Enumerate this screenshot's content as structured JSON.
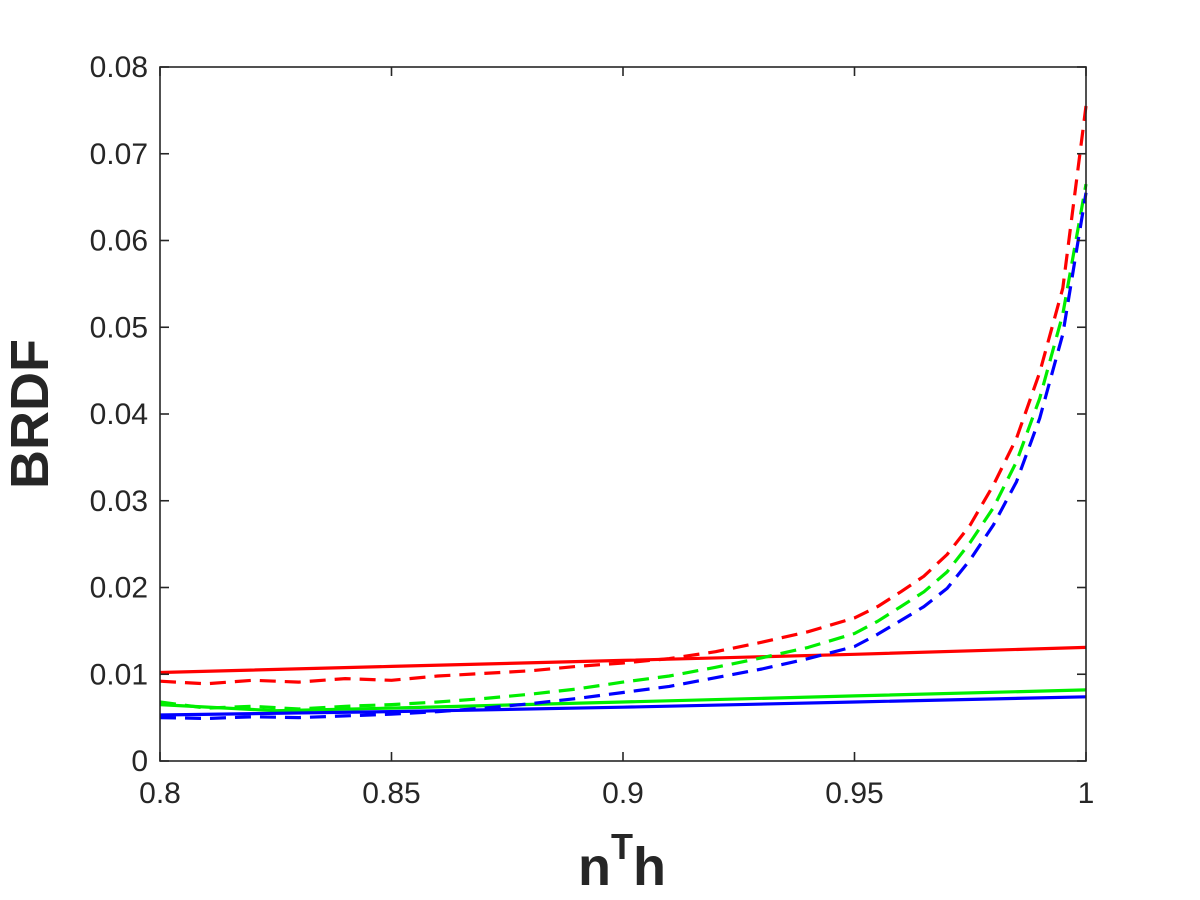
{
  "chart_data": {
    "type": "line",
    "xlabel_base": "n",
    "xlabel_sup": "T",
    "xlabel_tail": "h",
    "ylabel": "BRDF",
    "xlim": [
      0.8,
      1.0
    ],
    "ylim": [
      0,
      0.08
    ],
    "x_ticks": [
      0.8,
      0.85,
      0.9,
      0.95,
      1.0
    ],
    "x_tick_labels": [
      "0.8",
      "0.85",
      "0.9",
      "0.95",
      "1"
    ],
    "y_ticks": [
      0,
      0.01,
      0.02,
      0.03,
      0.04,
      0.05,
      0.06,
      0.07,
      0.08
    ],
    "y_tick_labels": [
      "0",
      "0.01",
      "0.02",
      "0.03",
      "0.04",
      "0.05",
      "0.06",
      "0.07",
      "0.08"
    ],
    "grid": false,
    "legend": "none",
    "series": [
      {
        "color": "#ff0000",
        "style": "solid",
        "x": [
          0.8,
          0.85,
          0.9,
          0.95,
          1.0
        ],
        "y": [
          0.0102,
          0.0109,
          0.0116,
          0.0123,
          0.0131
        ]
      },
      {
        "color": "#00ee00",
        "style": "solid",
        "x": [
          0.8,
          0.825,
          0.85,
          0.9,
          0.95,
          1.0
        ],
        "y": [
          0.0065,
          0.0058,
          0.0061,
          0.0068,
          0.0075,
          0.0082
        ]
      },
      {
        "color": "#0000ff",
        "style": "solid",
        "x": [
          0.8,
          0.825,
          0.85,
          0.9,
          0.95,
          1.0
        ],
        "y": [
          0.0053,
          0.0055,
          0.0057,
          0.0062,
          0.0068,
          0.0074
        ]
      },
      {
        "color": "#ff0000",
        "style": "dashed",
        "x": [
          0.8,
          0.81,
          0.82,
          0.83,
          0.84,
          0.85,
          0.86,
          0.87,
          0.88,
          0.89,
          0.9,
          0.91,
          0.92,
          0.93,
          0.94,
          0.95,
          0.955,
          0.96,
          0.965,
          0.97,
          0.975,
          0.98,
          0.985,
          0.99,
          0.995,
          1.0
        ],
        "y": [
          0.0092,
          0.0089,
          0.0093,
          0.0091,
          0.0095,
          0.0093,
          0.0098,
          0.0101,
          0.0104,
          0.0109,
          0.0113,
          0.0118,
          0.0126,
          0.0137,
          0.0149,
          0.0165,
          0.0178,
          0.0195,
          0.0213,
          0.0238,
          0.0272,
          0.0318,
          0.0372,
          0.0448,
          0.0545,
          0.0755
        ]
      },
      {
        "color": "#00ee00",
        "style": "dashed",
        "x": [
          0.8,
          0.81,
          0.82,
          0.83,
          0.84,
          0.85,
          0.86,
          0.87,
          0.88,
          0.89,
          0.9,
          0.91,
          0.92,
          0.93,
          0.94,
          0.95,
          0.955,
          0.96,
          0.965,
          0.97,
          0.975,
          0.98,
          0.985,
          0.99,
          0.995,
          1.0
        ],
        "y": [
          0.0068,
          0.0061,
          0.0063,
          0.006,
          0.0063,
          0.0065,
          0.0068,
          0.0072,
          0.0077,
          0.0083,
          0.0091,
          0.0098,
          0.0108,
          0.0119,
          0.0131,
          0.0147,
          0.0161,
          0.0178,
          0.0195,
          0.0218,
          0.0252,
          0.0292,
          0.0345,
          0.0418,
          0.0515,
          0.0665
        ]
      },
      {
        "color": "#0000ff",
        "style": "dashed",
        "x": [
          0.8,
          0.81,
          0.82,
          0.83,
          0.84,
          0.85,
          0.86,
          0.87,
          0.88,
          0.89,
          0.9,
          0.91,
          0.92,
          0.93,
          0.94,
          0.95,
          0.955,
          0.96,
          0.965,
          0.97,
          0.975,
          0.98,
          0.985,
          0.99,
          0.995,
          1.0
        ],
        "y": [
          0.005,
          0.0049,
          0.0051,
          0.005,
          0.0052,
          0.0054,
          0.0057,
          0.0061,
          0.0066,
          0.0072,
          0.0079,
          0.0086,
          0.0096,
          0.0106,
          0.0118,
          0.0132,
          0.0146,
          0.0162,
          0.0178,
          0.0199,
          0.0232,
          0.0272,
          0.0322,
          0.0395,
          0.0492,
          0.0655
        ]
      }
    ]
  }
}
